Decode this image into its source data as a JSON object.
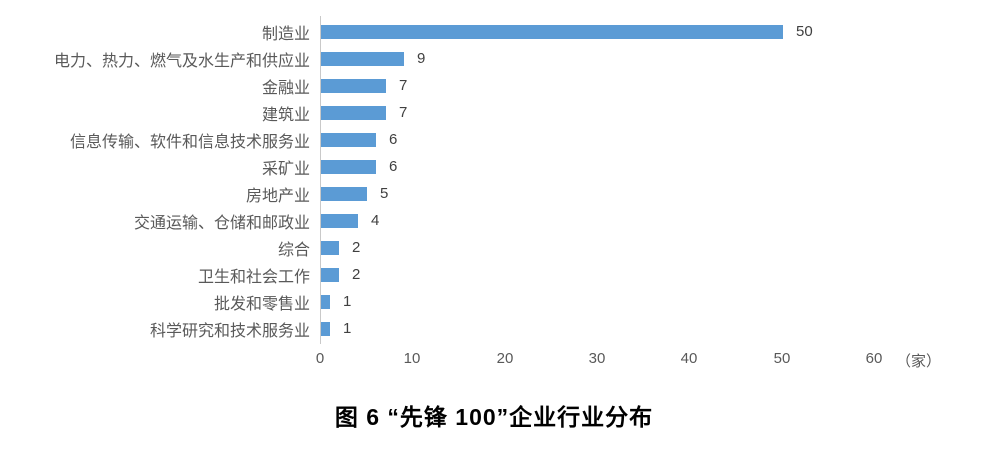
{
  "chart_data": {
    "type": "bar",
    "orientation": "horizontal",
    "categories": [
      "制造业",
      "电力、热力、燃气及水生产和供应业",
      "金融业",
      "建筑业",
      "信息传输、软件和信息技术服务业",
      "采矿业",
      "房地产业",
      "交通运输、仓储和邮政业",
      "综合",
      "卫生和社会工作",
      "批发和零售业",
      "科学研究和技术服务业"
    ],
    "values": [
      50,
      9,
      7,
      7,
      6,
      6,
      5,
      4,
      2,
      2,
      1,
      1
    ],
    "xlim": [
      0,
      60
    ],
    "x_ticks": [
      "0",
      "10",
      "20",
      "30",
      "40",
      "50",
      "60"
    ],
    "x_tick_values": [
      0,
      10,
      20,
      30,
      40,
      50,
      60
    ],
    "x_unit": "（家）",
    "grid": false,
    "legend": false,
    "data_labels": true,
    "bar_color": "#5B9BD5",
    "axis_line_color": "#c9c9c9",
    "label_color": "#595959",
    "value_label_color": "#404040",
    "title": ""
  },
  "caption": "图 6  “先锋 100”企业行业分布"
}
